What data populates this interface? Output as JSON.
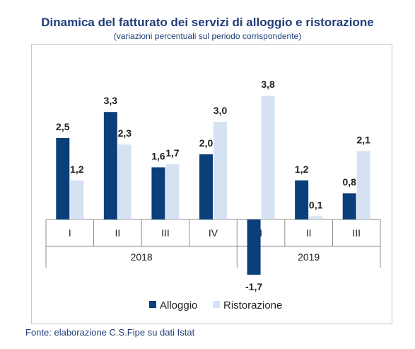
{
  "header": {
    "title": "Dinamica del fatturato dei servizi di alloggio e ristorazione",
    "subtitle": "(variazioni percentuali sul periodo corrispondente)"
  },
  "footer": {
    "source": "Fonte: elaborazione C.S.Fipe su dati Istat"
  },
  "chart_data": {
    "type": "bar",
    "title": "Dinamica del fatturato dei servizi di alloggio e ristorazione",
    "subtitle": "(variazioni percentuali sul periodo corrispondente)",
    "categories": [
      "I",
      "II",
      "III",
      "IV",
      "I",
      "II",
      "III"
    ],
    "groups": [
      {
        "label": "2018",
        "categories": [
          "I",
          "II",
          "III",
          "IV"
        ]
      },
      {
        "label": "2019",
        "categories": [
          "I",
          "II",
          "III"
        ]
      }
    ],
    "series": [
      {
        "name": "Alloggio",
        "color": "#0b3f7a",
        "values": [
          2.5,
          3.3,
          1.6,
          2.0,
          -1.7,
          1.2,
          0.8
        ],
        "labels": [
          "2,5",
          "3,3",
          "1,6",
          "2,0",
          "-1,7",
          "1,2",
          "0,8"
        ]
      },
      {
        "name": "Ristorazione",
        "color": "#d5e2f3",
        "values": [
          1.2,
          2.3,
          1.7,
          3.0,
          3.8,
          0.1,
          2.1
        ],
        "labels": [
          "1,2",
          "2,3",
          "1,7",
          "3,0",
          "3,8",
          "0,1",
          "2,1"
        ]
      }
    ],
    "ylim": [
      -1.7,
      3.8
    ],
    "grid": false,
    "legend": "bottom"
  }
}
